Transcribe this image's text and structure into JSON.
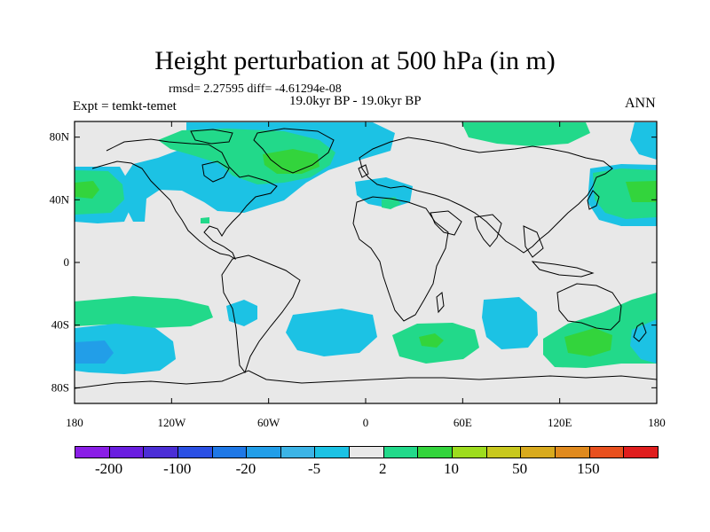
{
  "header": {
    "title": "Height perturbation at 500 hPa (in m)",
    "stats": "rmsd= 2.27595 diff= -4.61294e-08",
    "subtitle": "19.0kyr BP - 19.0kyr BP",
    "experiment": "Expt = temkt-temet",
    "season": "ANN"
  },
  "map": {
    "projection": "cylindrical equidistant",
    "lon_range": [
      -180,
      180
    ],
    "lat_range": [
      -90,
      90
    ],
    "lat_ticks": [
      {
        "value": 80,
        "label": "80N"
      },
      {
        "value": 40,
        "label": "40N"
      },
      {
        "value": 0,
        "label": "0"
      },
      {
        "value": -40,
        "label": "40S"
      },
      {
        "value": -80,
        "label": "80S"
      }
    ],
    "lon_ticks": [
      {
        "value": -180,
        "label": "180"
      },
      {
        "value": -120,
        "label": "120W"
      },
      {
        "value": -60,
        "label": "60W"
      },
      {
        "value": 0,
        "label": "0"
      },
      {
        "value": 60,
        "label": "60E"
      },
      {
        "value": 120,
        "label": "120E"
      },
      {
        "value": 180,
        "label": "180"
      }
    ],
    "background_color": "#e8e8e8"
  },
  "colorbar": {
    "colors": [
      "#8a1ee6",
      "#6a1ee0",
      "#4b2ed6",
      "#2b50e4",
      "#1f78e6",
      "#229ee8",
      "#3cb4e6",
      "#1cc2e4",
      "#e8e8e8",
      "#22d98a",
      "#33d43c",
      "#9ddc1e",
      "#c8c81e",
      "#d8aa1e",
      "#e08a1e",
      "#e8501e",
      "#e01e1e"
    ],
    "labels": [
      {
        "index": 1,
        "text": "-200"
      },
      {
        "index": 3,
        "text": "-100"
      },
      {
        "index": 5,
        "text": "-20"
      },
      {
        "index": 7,
        "text": "-5"
      },
      {
        "index": 9,
        "text": "2"
      },
      {
        "index": 11,
        "text": "10"
      },
      {
        "index": 13,
        "text": "50"
      },
      {
        "index": 15,
        "text": "150"
      }
    ]
  }
}
